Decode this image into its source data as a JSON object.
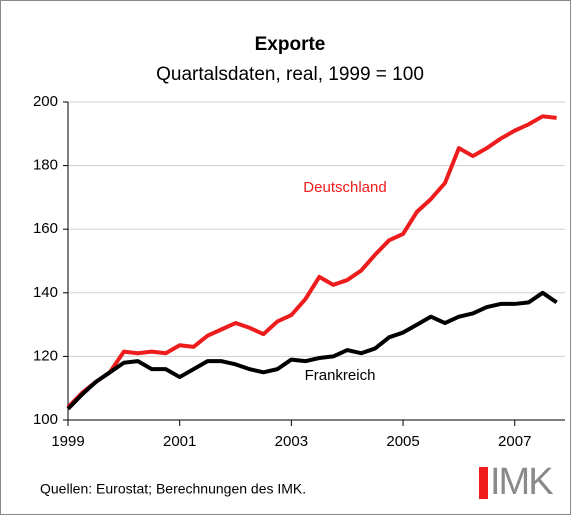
{
  "chart_data": {
    "type": "line",
    "title": "Exporte",
    "subtitle": "Quartalsdaten, real, 1999 = 100",
    "source": "Quellen: Eurostat; Berechnungen des IMK.",
    "logo": "IMK",
    "x": [
      1999,
      1999.25,
      1999.5,
      1999.75,
      2000,
      2000.25,
      2000.5,
      2000.75,
      2001,
      2001.25,
      2001.5,
      2001.75,
      2002,
      2002.25,
      2002.5,
      2002.75,
      2003,
      2003.25,
      2003.5,
      2003.75,
      2004,
      2004.25,
      2004.5,
      2004.75,
      2005,
      2005.25,
      2005.5,
      2005.75,
      2006,
      2006.25,
      2006.5,
      2006.75,
      2007,
      2007.25,
      2007.5,
      2007.75
    ],
    "series": [
      {
        "name": "Deutschland",
        "color": "#ee1c1c",
        "values": [
          104,
          108.5,
          112,
          115,
          121.5,
          121,
          121.5,
          121,
          123.5,
          123,
          126.5,
          128.5,
          130.5,
          129,
          127,
          131,
          133,
          138,
          145,
          142.5,
          144,
          147,
          152,
          156.5,
          158.5,
          165.5,
          169.5,
          174.5,
          185.5,
          183,
          185.5,
          188.5,
          191,
          193,
          195.5,
          195
        ]
      },
      {
        "name": "Frankreich",
        "color": "#000000",
        "values": [
          103.5,
          108,
          112,
          115,
          118,
          118.5,
          116,
          116,
          113.5,
          116,
          118.5,
          118.5,
          117.5,
          116,
          115,
          116,
          119,
          118.5,
          119.5,
          120,
          122,
          121,
          122.5,
          126,
          127.5,
          130,
          132.5,
          130.5,
          132.5,
          133.5,
          135.5,
          136.5,
          136.5,
          137,
          140,
          137
        ]
      }
    ],
    "xlim": [
      1999,
      2007.9
    ],
    "xticks": [
      1999,
      2001,
      2003,
      2005,
      2007
    ],
    "ylim": [
      100,
      200
    ],
    "yticks": [
      100,
      120,
      140,
      160,
      180,
      200
    ],
    "grid": true
  }
}
